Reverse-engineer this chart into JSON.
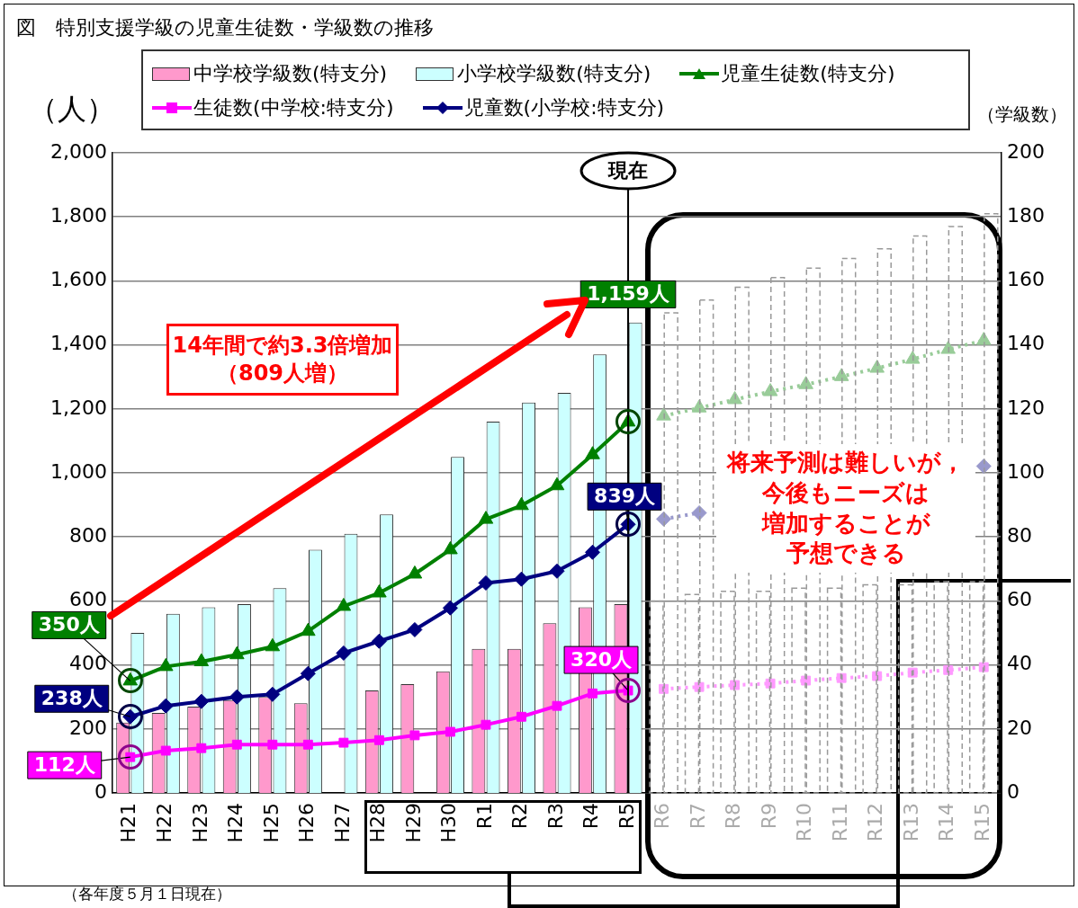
{
  "chart_data": {
    "type": "bar",
    "title": "図　特別支援学級の児童生徒数・学級数の推移",
    "ylabel": "（人）",
    "y2label": "（学級数）",
    "categories": [
      "H21",
      "H22",
      "H23",
      "H24",
      "H25",
      "H26",
      "H27",
      "H28",
      "H29",
      "H30",
      "R1",
      "R2",
      "R3",
      "R4",
      "R5",
      "R6",
      "R7",
      "R8",
      "R9",
      "R10",
      "R11",
      "R12",
      "R13",
      "R14",
      "R15"
    ],
    "series": [
      {
        "name": "中学校学級数(特支分)",
        "axis": "y2",
        "color": "#ff99cc",
        "values": [
          22,
          25,
          27,
          29,
          30,
          28,
          null,
          32,
          34,
          38,
          45,
          45,
          53,
          58,
          59,
          null,
          null,
          null,
          null,
          null,
          null,
          null,
          null,
          null,
          null
        ]
      },
      {
        "name": "小学校学級数(特支分)",
        "axis": "y2",
        "color": "#ccffff",
        "values": [
          50,
          56,
          58,
          59,
          64,
          76,
          81,
          87,
          null,
          105,
          116,
          122,
          125,
          137,
          147,
          null,
          null,
          null,
          null,
          null,
          null,
          null,
          null,
          null,
          null
        ]
      },
      {
        "name": "児童生徒数(特支分)",
        "type": "line",
        "color": "#008000",
        "marker": "triangle",
        "values": [
          350,
          395,
          410,
          432,
          457,
          505,
          583,
          625,
          684,
          760,
          855,
          898,
          960,
          1057,
          1159,
          null,
          null,
          null,
          null,
          null,
          null,
          null,
          null,
          null,
          null
        ],
        "value_labels": [
          "350人",
          null,
          null,
          null,
          null,
          null,
          null,
          null,
          null,
          null,
          null,
          null,
          null,
          null,
          "1,159人",
          null,
          null,
          null,
          null,
          null,
          null,
          null,
          null,
          null,
          null
        ]
      },
      {
        "name": "生徒数(中学校:特支分)",
        "type": "line",
        "color": "#ff00ff",
        "marker": "square",
        "values": [
          112,
          132,
          140,
          151,
          151,
          151,
          157,
          165,
          180,
          191,
          213,
          238,
          272,
          311,
          320,
          null,
          null,
          null,
          null,
          null,
          null,
          null,
          null,
          null,
          null
        ],
        "value_labels": [
          "112人",
          null,
          null,
          null,
          null,
          null,
          null,
          null,
          null,
          null,
          null,
          null,
          null,
          null,
          "320人",
          null,
          null,
          null,
          null,
          null,
          null,
          null,
          null,
          null,
          null
        ]
      },
      {
        "name": "児童数(小学校:特支分)",
        "type": "line",
        "color": "#000080",
        "marker": "diamond",
        "values": [
          238,
          272,
          286,
          300,
          308,
          373,
          437,
          474,
          510,
          578,
          656,
          668,
          693,
          752,
          839,
          null,
          null,
          null,
          null,
          null,
          null,
          null,
          null,
          null,
          null
        ],
        "value_labels": [
          "238人",
          null,
          null,
          null,
          null,
          null,
          null,
          null,
          null,
          null,
          null,
          null,
          null,
          null,
          "839人",
          null,
          null,
          null,
          null,
          null,
          null,
          null,
          null,
          null,
          null
        ]
      },
      {
        "axis": "y2",
        "color": "#999999",
        "line_style": "dashed",
        "values": [
          null,
          null,
          null,
          null,
          null,
          null,
          null,
          null,
          null,
          null,
          null,
          null,
          null,
          null,
          null,
          60,
          62,
          63,
          63,
          64,
          64,
          65,
          65,
          66,
          66
        ]
      },
      {
        "axis": "y2",
        "color": "#999999",
        "line_style": "dashed",
        "values": [
          null,
          null,
          null,
          null,
          null,
          null,
          null,
          null,
          null,
          null,
          null,
          null,
          null,
          null,
          null,
          150,
          154,
          158,
          161,
          164,
          167,
          170,
          174,
          177,
          181
        ]
      },
      {
        "type": "line",
        "color": "#99cc99",
        "marker": "triangle",
        "line_style": "dotted",
        "values": [
          null,
          null,
          null,
          null,
          null,
          null,
          null,
          null,
          null,
          null,
          null,
          null,
          null,
          null,
          null,
          1178,
          1203,
          1229,
          1254,
          1276,
          1301,
          1327,
          1355,
          1386,
          1414
        ]
      },
      {
        "type": "line",
        "color": "#ff99ff",
        "marker": "square",
        "line_style": "dotted",
        "values": [
          null,
          null,
          null,
          null,
          null,
          null,
          null,
          null,
          null,
          null,
          null,
          null,
          null,
          null,
          null,
          325,
          331,
          337,
          342,
          351,
          359,
          365,
          376,
          384,
          393
        ]
      },
      {
        "type": "line",
        "color": "#9999cc",
        "marker": "diamond",
        "line_style": "dotted",
        "values": [
          null,
          null,
          null,
          null,
          null,
          null,
          null,
          null,
          null,
          null,
          null,
          null,
          null,
          null,
          null,
          856,
          875,
          null,
          null,
          null,
          null,
          null,
          null,
          null,
          1021
        ]
      }
    ],
    "ylim": [
      0,
      2000
    ],
    "yticks": [
      0,
      200,
      400,
      600,
      800,
      {
        "value": 1000,
        "label": "1,000"
      },
      {
        "value": 1200,
        "label": "1,200"
      },
      {
        "value": 1400,
        "label": "1,400"
      },
      {
        "value": 1600,
        "label": "1,600"
      },
      {
        "value": 1800,
        "label": "1,800"
      },
      {
        "value": 2000,
        "label": "2,000"
      }
    ],
    "y2lim": [
      0,
      200
    ],
    "y2ticks": [
      0,
      20,
      40,
      60,
      80,
      100,
      120,
      140,
      160,
      180,
      200
    ],
    "grid": "y",
    "legend": "top",
    "ref_lines": [
      {
        "axis": "x",
        "value": "R5",
        "label": "現在"
      }
    ],
    "annotations": [
      "14年間で約3.3倍増加",
      "（809人増）",
      "将来予測は難しいが，",
      "今後もニーズは",
      "増加することが",
      "予想できる",
      "（各年度５月１日現在）"
    ]
  }
}
